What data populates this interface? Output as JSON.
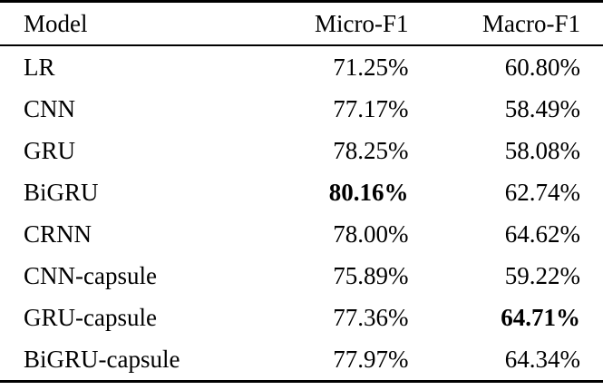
{
  "table": {
    "headers": [
      "Model",
      "Micro-F1",
      "Macro-F1"
    ],
    "rows": [
      {
        "model": "LR",
        "micro_f1": "71.25%",
        "macro_f1": "60.80%",
        "bold_micro": false,
        "bold_macro": false
      },
      {
        "model": "CNN",
        "micro_f1": "77.17%",
        "macro_f1": "58.49%",
        "bold_micro": false,
        "bold_macro": false
      },
      {
        "model": "GRU",
        "micro_f1": "78.25%",
        "macro_f1": "58.08%",
        "bold_micro": false,
        "bold_macro": false
      },
      {
        "model": "BiGRU",
        "micro_f1": "80.16%",
        "macro_f1": "62.74%",
        "bold_micro": true,
        "bold_macro": false
      },
      {
        "model": "CRNN",
        "micro_f1": "78.00%",
        "macro_f1": "64.62%",
        "bold_micro": false,
        "bold_macro": false
      },
      {
        "model": "CNN-capsule",
        "micro_f1": "75.89%",
        "macro_f1": "59.22%",
        "bold_micro": false,
        "bold_macro": false
      },
      {
        "model": "GRU-capsule",
        "micro_f1": "77.36%",
        "macro_f1": "64.71%",
        "bold_micro": false,
        "bold_macro": true
      },
      {
        "model": "BiGRU-capsule",
        "micro_f1": "77.97%",
        "macro_f1": "64.34%",
        "bold_micro": false,
        "bold_macro": false
      }
    ],
    "colors": {
      "text": "#000000",
      "background": "#ffffff",
      "rule": "#000000"
    }
  },
  "chart_data": {
    "type": "table",
    "title": "",
    "columns": [
      "Model",
      "Micro-F1",
      "Macro-F1"
    ],
    "rows": [
      [
        "LR",
        71.25,
        60.8
      ],
      [
        "CNN",
        77.17,
        58.49
      ],
      [
        "GRU",
        78.25,
        58.08
      ],
      [
        "BiGRU",
        80.16,
        62.74
      ],
      [
        "CRNN",
        78.0,
        64.62
      ],
      [
        "CNN-capsule",
        75.89,
        59.22
      ],
      [
        "GRU-capsule",
        77.36,
        64.71
      ],
      [
        "BiGRU-capsule",
        77.97,
        64.34
      ]
    ],
    "units": "%",
    "best_micro_f1": {
      "model": "BiGRU",
      "value": 80.16
    },
    "best_macro_f1": {
      "model": "GRU-capsule",
      "value": 64.71
    }
  }
}
